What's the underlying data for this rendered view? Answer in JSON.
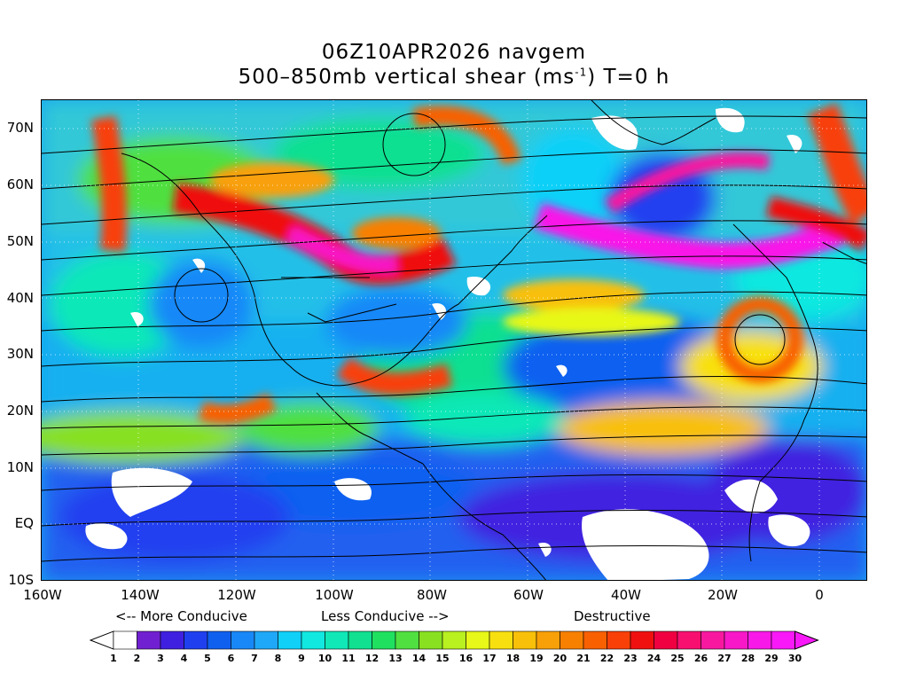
{
  "title": {
    "line1": "06Z10APR2026 navgem",
    "line2_prefix": "500–850mb vertical shear (ms",
    "line2_sup": "-1",
    "line2_suffix": ") T=0 h"
  },
  "axes": {
    "y_labels": [
      "70N",
      "60N",
      "50N",
      "40N",
      "30N",
      "20N",
      "10N",
      "EQ",
      "10S"
    ],
    "x_labels": [
      "160W",
      "140W",
      "120W",
      "100W",
      "80W",
      "60W",
      "40W",
      "20W",
      "0"
    ]
  },
  "legend_text": {
    "more_conducive": "<-- More Conducive",
    "less_conducive": "Less Conducive -->",
    "destructive": "Destructive"
  },
  "colorbar": {
    "labels": [
      "1",
      "2",
      "3",
      "4",
      "5",
      "6",
      "7",
      "8",
      "9",
      "10",
      "11",
      "12",
      "13",
      "14",
      "15",
      "16",
      "17",
      "18",
      "19",
      "20",
      "21",
      "22",
      "23",
      "24",
      "25",
      "26",
      "27",
      "28",
      "29",
      "30"
    ],
    "colors": [
      "#ffffff",
      "#7020d0",
      "#4020e0",
      "#2040f0",
      "#1060f0",
      "#1888f8",
      "#20a8f8",
      "#10d0f8",
      "#10e8e0",
      "#10e8b8",
      "#10e090",
      "#20e060",
      "#50e040",
      "#88e020",
      "#b8f020",
      "#e8f818",
      "#f8e010",
      "#f8c008",
      "#f8a008",
      "#f88000",
      "#f86000",
      "#f84008",
      "#f01010",
      "#f00040",
      "#f81070",
      "#f818a0",
      "#f818c8",
      "#f818e8",
      "#f818f8"
    ]
  }
}
